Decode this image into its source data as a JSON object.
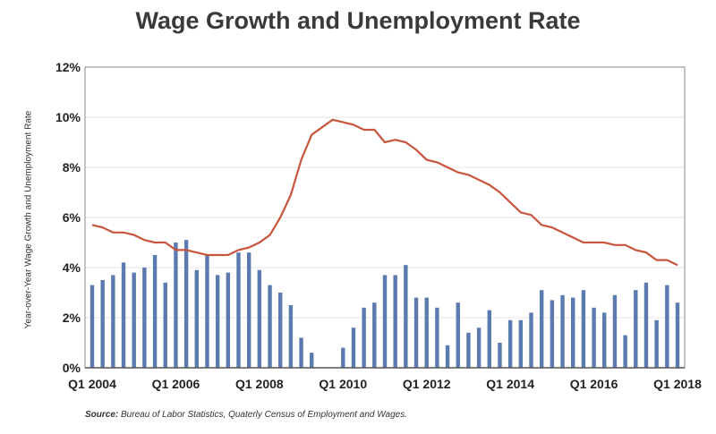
{
  "chart_data": {
    "type": "bar+line",
    "title": "Wage Growth and Unemployment Rate",
    "ylabel": "Year-over-Year Wage Growth and Unemployment Rate",
    "xlabel": "",
    "ylim": [
      0,
      12
    ],
    "yticks": [
      "0%",
      "2%",
      "4%",
      "6%",
      "8%",
      "10%",
      "12%"
    ],
    "xtick_labels": [
      "Q1 2004",
      "Q1 2006",
      "Q1 2008",
      "Q1 2010",
      "Q1 2012",
      "Q1 2014",
      "Q1 2016",
      "Q1 2018"
    ],
    "grid": true,
    "series": [
      {
        "name": "Year-over-Year Wage Growth",
        "type": "bar",
        "color": "#5b7bb0",
        "values": [
          3.3,
          3.5,
          3.7,
          4.2,
          3.8,
          4.0,
          4.5,
          3.4,
          5.0,
          5.1,
          3.9,
          4.5,
          3.7,
          3.8,
          4.6,
          4.6,
          3.9,
          3.3,
          3.0,
          2.5,
          1.2,
          0.6,
          0,
          0,
          0.8,
          1.6,
          2.4,
          2.6,
          3.7,
          3.7,
          4.1,
          2.8,
          2.8,
          2.4,
          0.9,
          2.6,
          1.4,
          1.6,
          2.3,
          1.0,
          1.9,
          1.9,
          2.2,
          3.1,
          2.7,
          2.9,
          2.8,
          3.1,
          2.4,
          2.2,
          2.9,
          1.3,
          3.1,
          3.4,
          1.9,
          3.3,
          2.6
        ]
      },
      {
        "name": "Unemployment Rate",
        "type": "line",
        "color": "#c8553d",
        "values": [
          5.7,
          5.6,
          5.4,
          5.4,
          5.3,
          5.1,
          5.0,
          5.0,
          4.7,
          4.7,
          4.6,
          4.5,
          4.5,
          4.5,
          4.7,
          4.8,
          5.0,
          5.3,
          6.0,
          6.9,
          8.3,
          9.3,
          9.6,
          9.9,
          9.8,
          9.7,
          9.5,
          9.5,
          9.0,
          9.1,
          9.0,
          8.7,
          8.3,
          8.2,
          8.0,
          7.8,
          7.7,
          7.5,
          7.3,
          7.0,
          6.6,
          6.2,
          6.1,
          5.7,
          5.6,
          5.4,
          5.2,
          5.0,
          5.0,
          5.0,
          4.9,
          4.9,
          4.7,
          4.6,
          4.3,
          4.3,
          4.1
        ]
      }
    ]
  },
  "source": {
    "label": "Source:",
    "text": " Bureau of Labor Statistics, Quaterly Census of Employment and Wages."
  }
}
